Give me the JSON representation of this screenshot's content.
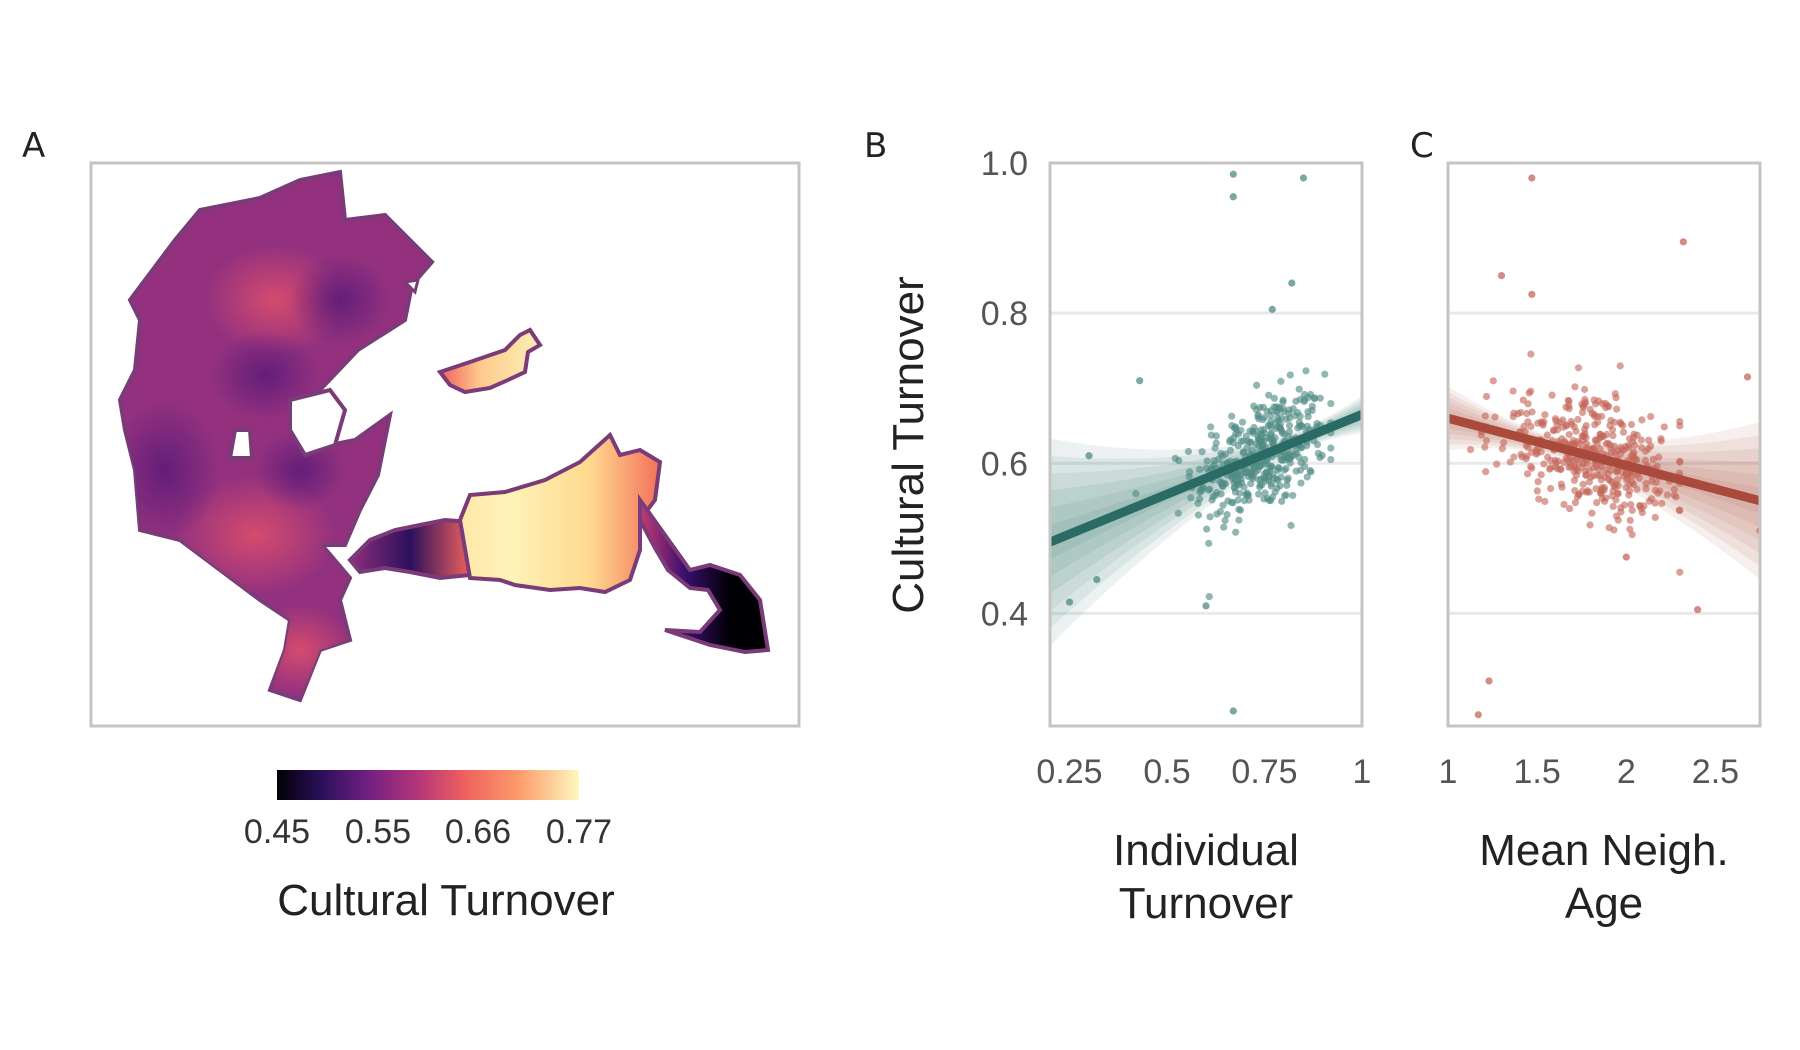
{
  "panel_labels": [
    "A",
    "B",
    "C"
  ],
  "colors": {
    "panel_b": "#2a6b66",
    "panel_c": "#a94a3c",
    "frame": "#c4c4c4",
    "grid": "#e9e9e9"
  },
  "chart_data": [
    {
      "panel": "A",
      "type": "heatmap",
      "legend": {
        "title": "Cultural Turnover",
        "tick_labels": [
          "0.45",
          "0.55",
          "0.66",
          "0.77"
        ],
        "range": [
          0.45,
          0.77
        ],
        "colormap": "magma",
        "placement": "bottom"
      },
      "regions": [
        {
          "name": "west-area",
          "value": 0.62
        },
        {
          "name": "northeast-strip",
          "value": 0.72
        },
        {
          "name": "center-neck",
          "value": 0.52
        },
        {
          "name": "east-area",
          "value": 0.75
        },
        {
          "name": "far-east-tip",
          "value": 0.46
        }
      ]
    },
    {
      "panel": "B",
      "type": "scatter",
      "xlabel_lines": [
        "Individual",
        "Turnover"
      ],
      "ylabel": "Cultural Turnover",
      "x_ticks": [
        "0.25",
        "0.5",
        "0.75",
        "1"
      ],
      "y_ticks": [
        "0.4",
        "0.6",
        "0.8",
        "1.0"
      ],
      "xlim": [
        0.2,
        1.0
      ],
      "ylim": [
        0.25,
        1.0
      ],
      "grid": true,
      "trend": {
        "x": [
          0.2,
          1.0
        ],
        "y": [
          0.495,
          0.665
        ]
      },
      "outliers": [
        [
          0.67,
          0.985
        ],
        [
          0.85,
          0.98
        ],
        [
          0.67,
          0.955
        ],
        [
          0.82,
          0.84
        ],
        [
          0.77,
          0.805
        ],
        [
          0.67,
          0.27
        ],
        [
          0.25,
          0.415
        ],
        [
          0.6,
          0.41
        ],
        [
          0.32,
          0.445
        ],
        [
          0.43,
          0.71
        ],
        [
          0.3,
          0.61
        ]
      ]
    },
    {
      "panel": "C",
      "type": "scatter",
      "xlabel_lines": [
        "Mean Neigh.",
        "Age"
      ],
      "ylabel": "",
      "x_ticks": [
        "1",
        "1.5",
        "2",
        "2.5"
      ],
      "y_ticks": [
        "0.4",
        "0.6",
        "0.8",
        "1.0"
      ],
      "xlim": [
        1.0,
        2.75
      ],
      "ylim": [
        0.25,
        1.0
      ],
      "grid": true,
      "trend": {
        "x": [
          1.0,
          2.75
        ],
        "y": [
          0.66,
          0.55
        ]
      },
      "outliers": [
        [
          1.47,
          0.98
        ],
        [
          2.32,
          0.895
        ],
        [
          1.3,
          0.85
        ],
        [
          1.47,
          0.825
        ],
        [
          2.68,
          0.715
        ],
        [
          1.23,
          0.31
        ],
        [
          1.17,
          0.265
        ],
        [
          2.4,
          0.405
        ],
        [
          2.75,
          0.51
        ],
        [
          2.0,
          0.475
        ]
      ]
    }
  ]
}
